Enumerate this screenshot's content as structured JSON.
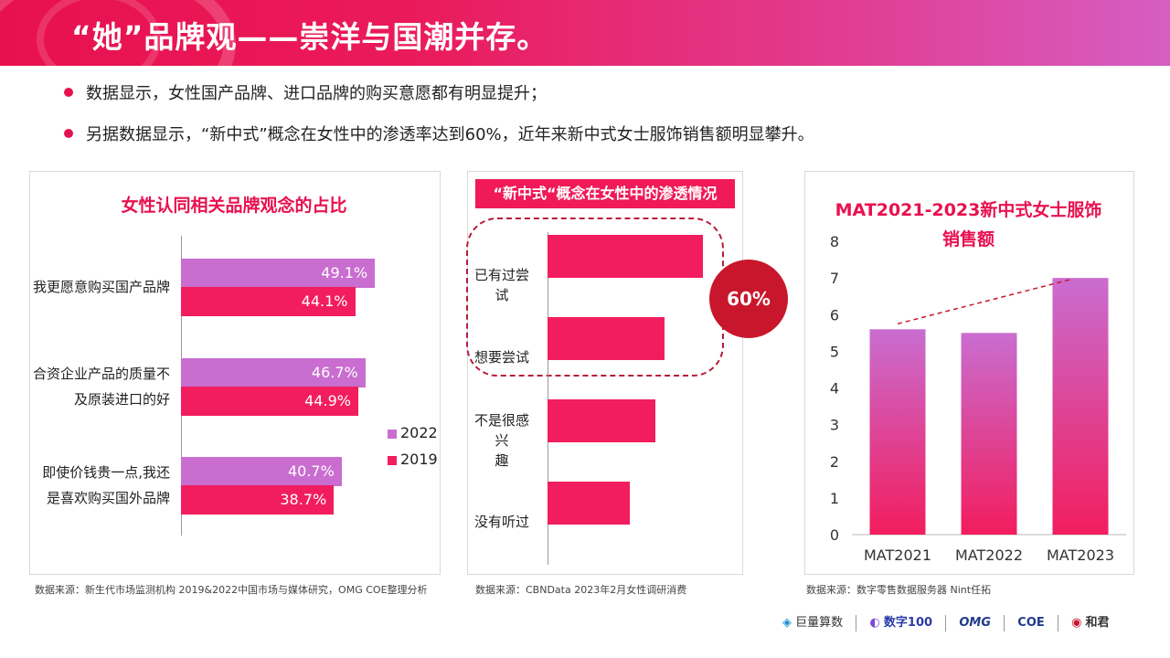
{
  "header": {
    "title": "“她”品牌观——崇洋与国潮并存。"
  },
  "bullets": [
    "数据显示，女性国产品牌、进口品牌的购买意愿都有明显提升；",
    "另据数据显示，“新中式”概念在女性中的渗透率达到60%，近年来新中式女士服饰销售额明显攀升。"
  ],
  "colors": {
    "accent": "#e8114f",
    "series_2022": "#c96dd0",
    "series_2019": "#f21d5e",
    "circle": "#c8172c"
  },
  "chart_data": [
    {
      "type": "bar",
      "orientation": "horizontal",
      "title": "女性认同相关品牌观念的占比",
      "categories": [
        "我更愿意购买国产品牌",
        "合资企业产品的质量不及原装进口的好",
        "即使价钱贵一点,我还是喜欢购买国外品牌"
      ],
      "category_lines": [
        [
          "我更愿意购买国产品牌"
        ],
        [
          "合资企业产品的质量不",
          "及原装进口的好"
        ],
        [
          "即使价钱贵一点,我还",
          "是喜欢购买国外品牌"
        ]
      ],
      "series": [
        {
          "name": "2022",
          "values": [
            49.1,
            46.7,
            40.7
          ],
          "labels": [
            "49.1%",
            "46.7%",
            "40.7%"
          ]
        },
        {
          "name": "2019",
          "values": [
            44.1,
            44.9,
            38.7
          ],
          "labels": [
            "44.1%",
            "44.9%",
            "38.7%"
          ]
        }
      ],
      "xlim": [
        0,
        60
      ],
      "legend": "right",
      "source": "数据来源：新生代市场监测机构 2019&2022中国市场与媒体研究，OMG COE整理分析"
    },
    {
      "type": "bar",
      "orientation": "horizontal",
      "title": "“新中式“概念在女性中的渗透情况",
      "categories": [
        "已有过尝试",
        "想要尝试",
        "不是很感兴趣",
        "没有听过"
      ],
      "category_lines": [
        [
          "已有过尝试"
        ],
        [
          "想要尝试"
        ],
        [
          "不是很感兴",
          "趣"
        ],
        [
          "没有听过"
        ]
      ],
      "values": [
        36,
        27,
        25,
        19
      ],
      "xlim": [
        0,
        40
      ],
      "annotation": "60%",
      "source": "数据来源：CBNData 2023年2月女性调研消费"
    },
    {
      "type": "bar",
      "title_lines": [
        "MAT2021-2023新中式女士服饰",
        "销售额"
      ],
      "categories": [
        "MAT2021",
        "MAT2022",
        "MAT2023"
      ],
      "values": [
        5.6,
        5.5,
        7.0
      ],
      "ylim": [
        0,
        8
      ],
      "yticks": [
        "0",
        "1",
        "2",
        "3",
        "4",
        "5",
        "6",
        "7",
        "8"
      ],
      "trend_line": "dashed",
      "source": "数据来源：数字零售数据服务器 Nint任拓"
    }
  ],
  "footer": {
    "logos": [
      "巨量算数",
      "数字100",
      "OMG",
      "COE",
      "和君"
    ]
  }
}
